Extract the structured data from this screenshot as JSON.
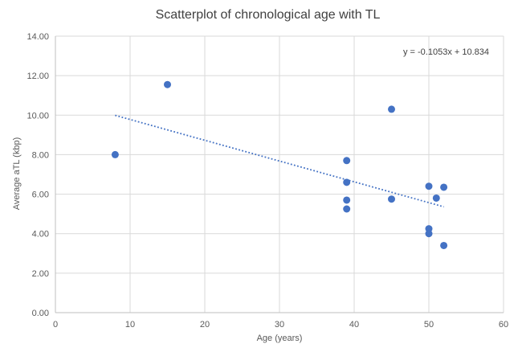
{
  "chart_data": {
    "type": "scatter",
    "title": "Scatterplot of chronological age with TL",
    "xlabel": "Age (years)",
    "ylabel": "Average aTL (kbp)",
    "equation": "y = -0.1053x + 10.834",
    "xlim": [
      0,
      60
    ],
    "ylim": [
      0,
      14
    ],
    "x_ticks": [
      0,
      10,
      20,
      30,
      40,
      50,
      60
    ],
    "x_tick_labels": [
      "0",
      "10",
      "20",
      "30",
      "40",
      "50",
      "60"
    ],
    "y_ticks": [
      0,
      2,
      4,
      6,
      8,
      10,
      12,
      14
    ],
    "y_tick_labels": [
      "0.00",
      "2.00",
      "4.00",
      "6.00",
      "8.00",
      "10.00",
      "12.00",
      "14.00"
    ],
    "grid": true,
    "legend": "none",
    "points": [
      [
        8,
        8.0
      ],
      [
        15,
        11.55
      ],
      [
        39,
        7.7
      ],
      [
        39,
        6.6
      ],
      [
        39,
        5.7
      ],
      [
        39,
        5.25
      ],
      [
        45,
        10.3
      ],
      [
        45,
        5.75
      ],
      [
        50,
        6.4
      ],
      [
        50,
        4.25
      ],
      [
        50,
        4.0
      ],
      [
        51,
        5.8
      ],
      [
        52,
        6.35
      ],
      [
        52,
        3.4
      ]
    ],
    "trendline": {
      "slope": -0.1053,
      "intercept": 10.834,
      "x_start": 8,
      "x_end": 52,
      "style": "dotted"
    },
    "colors": {
      "marker": "#4472C4",
      "trendline": "#4472C4",
      "gridline": "#D9D9D9",
      "axis_line": "#BFBFBF",
      "tick_text": "#595959",
      "title_text": "#404040"
    }
  }
}
